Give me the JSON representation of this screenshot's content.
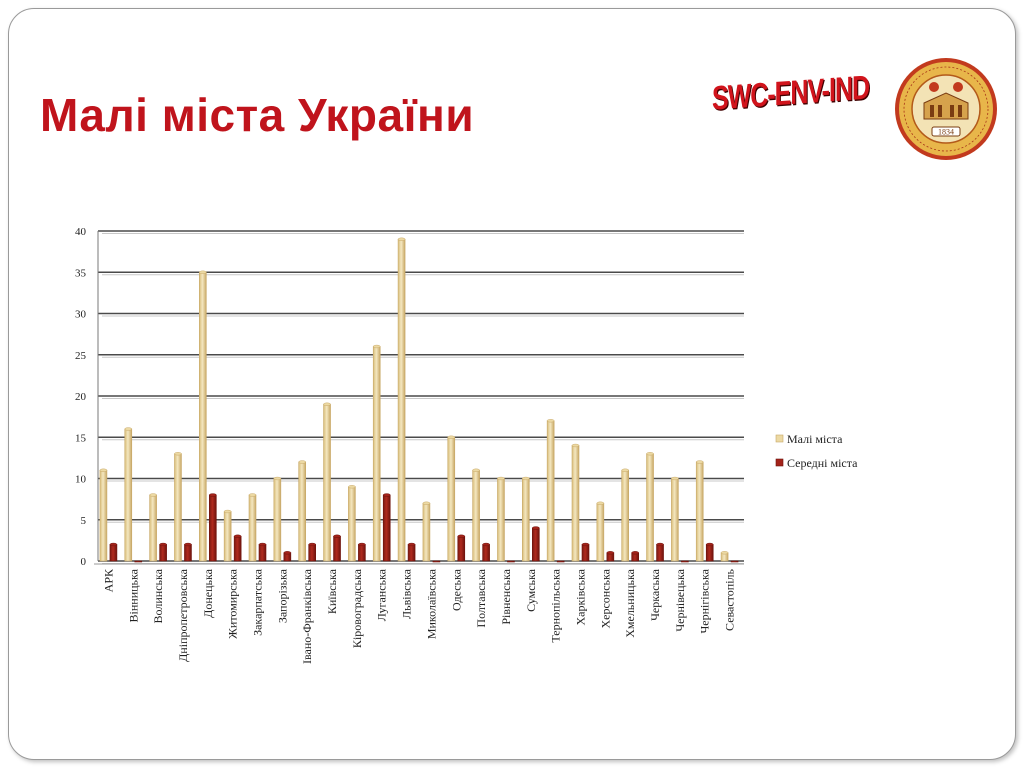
{
  "slide": {
    "title": "Малі міста України",
    "brand_tag": "SWC-ENV-IND",
    "seal": {
      "year": "1834"
    }
  },
  "colors": {
    "title": "#c0141c",
    "small_bar": "#ecd9a3",
    "small_bar_dark": "#c9a968",
    "medium_bar": "#a3231a",
    "medium_bar_dark": "#6e130d",
    "gridline": "#4a4a4a"
  },
  "chart_data": {
    "type": "bar",
    "title": "",
    "xlabel": "",
    "ylabel": "",
    "ylim": [
      0,
      40
    ],
    "yticks": [
      0,
      5,
      10,
      15,
      20,
      25,
      30,
      35,
      40
    ],
    "grid": true,
    "legend_position": "right",
    "categories": [
      "АРК",
      "Вінницька",
      "Волинська",
      "Дніпропетровська",
      "Донецька",
      "Житомирська",
      "Закарпатська",
      "Запорізька",
      "Івано-Франківська",
      "Київська",
      "Кіровоградська",
      "Луганська",
      "Львівська",
      "Миколаївська",
      "Одеська",
      "Полтавська",
      "Рівненська",
      "Сумська",
      "Тернопільська",
      "Харківська",
      "Херсонська",
      "Хмельницька",
      "Черкаська",
      "Чернівецька",
      "Чернігівська",
      "Севастопіль"
    ],
    "series": [
      {
        "name": "Малі міста",
        "values": [
          11,
          16,
          8,
          13,
          35,
          6,
          8,
          10,
          12,
          19,
          9,
          26,
          39,
          7,
          15,
          11,
          10,
          10,
          17,
          14,
          7,
          11,
          13,
          10,
          12,
          1
        ]
      },
      {
        "name": "Середні міста",
        "values": [
          2,
          0,
          2,
          2,
          8,
          3,
          2,
          1,
          2,
          3,
          2,
          8,
          2,
          0,
          3,
          2,
          0,
          4,
          0,
          2,
          1,
          1,
          2,
          0,
          2,
          0
        ]
      }
    ]
  }
}
